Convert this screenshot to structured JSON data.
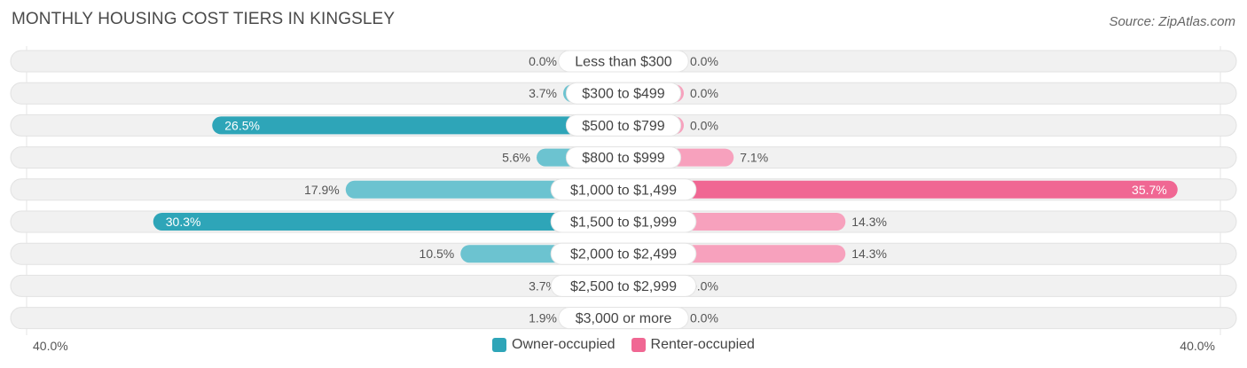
{
  "title": "MONTHLY HOUSING COST TIERS IN KINGSLEY",
  "source": "Source: ZipAtlas.com",
  "chart_data": {
    "type": "bar",
    "orientation": "horizontal-diverging",
    "categories": [
      "Less than $300",
      "$300 to $499",
      "$500 to $799",
      "$800 to $999",
      "$1,000 to $1,499",
      "$1,500 to $1,999",
      "$2,000 to $2,499",
      "$2,500 to $2,999",
      "$3,000 or more"
    ],
    "series": [
      {
        "name": "Owner-occupied",
        "values": [
          0.0,
          3.7,
          26.5,
          5.6,
          17.9,
          30.3,
          10.5,
          3.7,
          1.9
        ],
        "labels": [
          "0.0%",
          "3.7%",
          "26.5%",
          "5.6%",
          "17.9%",
          "30.3%",
          "10.5%",
          "3.7%",
          "1.9%"
        ]
      },
      {
        "name": "Renter-occupied",
        "values": [
          0.0,
          0.0,
          0.0,
          7.1,
          35.7,
          14.3,
          14.3,
          0.0,
          0.0
        ],
        "labels": [
          "0.0%",
          "0.0%",
          "0.0%",
          "7.1%",
          "35.7%",
          "14.3%",
          "14.3%",
          "0.0%",
          "0.0%"
        ]
      }
    ],
    "axis_min_label": "40.0%",
    "axis_max_label": "40.0%",
    "xlim": [
      -40,
      40
    ],
    "legend_position": "bottom-center",
    "colors": {
      "owner": "#6cc3d0",
      "owner_strong": "#2ea5b8",
      "renter": "#f7a1bd",
      "renter_strong": "#f06793",
      "track": "#f1f1f1"
    }
  }
}
